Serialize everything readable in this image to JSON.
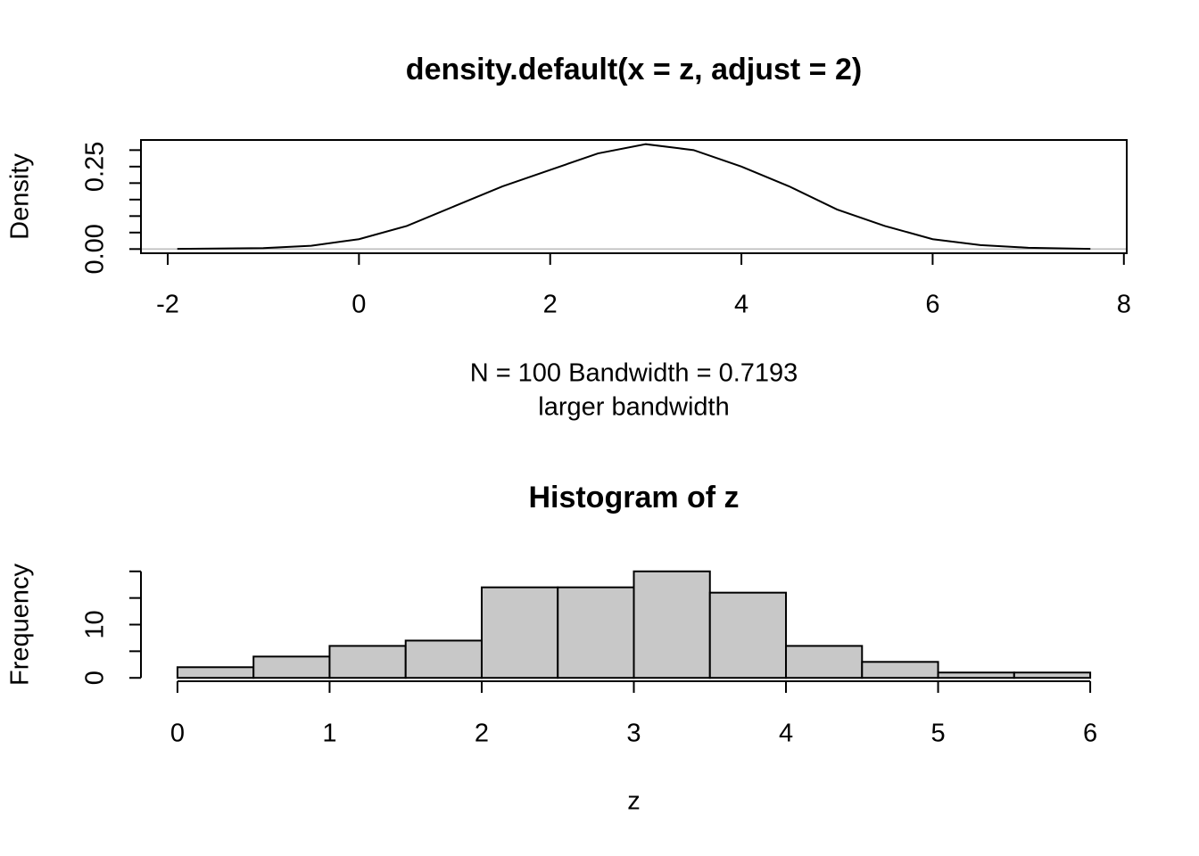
{
  "chart_data": [
    {
      "type": "line",
      "title": "density.default(x = z, adjust = 2)",
      "subtitle": "N = 100   Bandwidth = 0.7193",
      "x_label": "larger bandwidth",
      "y_label": "Density",
      "x": [
        -1.9,
        -1,
        -0.5,
        0,
        0.5,
        1,
        1.5,
        2,
        2.5,
        3,
        3.5,
        4,
        4.5,
        5,
        5.5,
        6,
        6.5,
        7,
        7.65
      ],
      "values": [
        0.0005,
        0.003,
        0.01,
        0.03,
        0.07,
        0.13,
        0.19,
        0.24,
        0.29,
        0.318,
        0.3,
        0.25,
        0.19,
        0.12,
        0.07,
        0.03,
        0.012,
        0.004,
        0.0005
      ],
      "color": "#000000",
      "xlim": [
        -2.28,
        8.03
      ],
      "ylim": [
        -0.0127,
        0.3307
      ],
      "xticks": [
        -2,
        0,
        2,
        4,
        6,
        8
      ],
      "yticks": [
        {
          "value": 0,
          "label": "0.00"
        },
        {
          "value": 0.05,
          "label": null
        },
        {
          "value": 0.1,
          "label": null
        },
        {
          "value": 0.15,
          "label": null
        },
        {
          "value": 0.2,
          "label": null
        },
        {
          "value": 0.25,
          "label": "0.25"
        },
        {
          "value": 0.3,
          "label": null
        }
      ],
      "zero_line": true,
      "box": true
    },
    {
      "type": "histogram",
      "title": "Histogram of z",
      "x_label": "z",
      "y_label": "Frequency",
      "bins": [
        0,
        0.5,
        1,
        1.5,
        2,
        2.5,
        3,
        3.5,
        4,
        4.5,
        5,
        5.5,
        6
      ],
      "values": [
        2,
        4,
        6,
        7,
        17,
        17,
        20,
        16,
        6,
        3,
        1,
        1
      ],
      "color": "#c8c8c8",
      "xlim": [
        -0.24,
        6.24
      ],
      "ylim": [
        -0.8,
        20.8
      ],
      "xticks": [
        0,
        1,
        2,
        3,
        4,
        5,
        6
      ],
      "yticks": [
        0,
        {
          "value": 5,
          "label": null
        },
        10,
        {
          "value": 15,
          "label": null
        },
        {
          "value": 20,
          "label": null
        }
      ],
      "box": false
    }
  ]
}
